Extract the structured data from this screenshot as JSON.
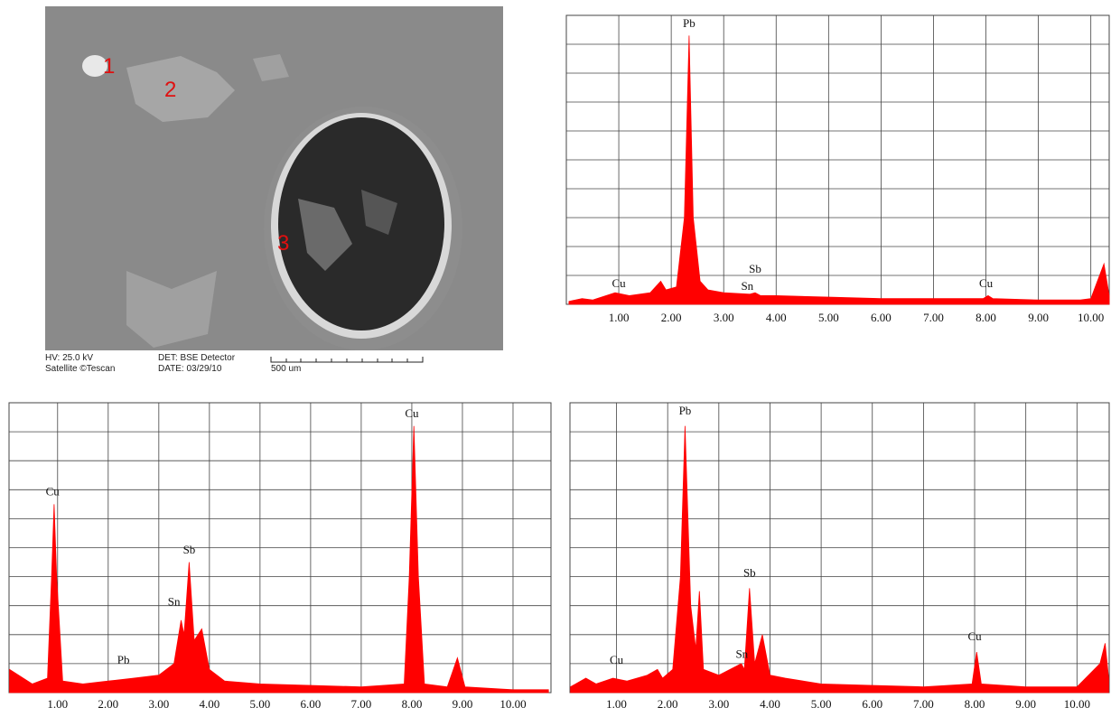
{
  "sem_image": {
    "labels": [
      "1",
      "2",
      "3"
    ],
    "hv": "HV: 25.0 kV",
    "det": "DET: BSE Detector",
    "make": "Satellite ©Tescan",
    "date": "DATE: 03/29/10",
    "scale_bar": "500 um"
  },
  "chart_data": [
    {
      "type": "area",
      "color": "#ff0000",
      "grid": true,
      "xlim": [
        0,
        10.35
      ],
      "ylim": [
        0,
        100
      ],
      "xticks": [
        {
          "value": 1,
          "label": "1.00"
        },
        {
          "value": 2,
          "label": "2.00"
        },
        {
          "value": 3,
          "label": "3.00"
        },
        {
          "value": 4,
          "label": "4.00"
        },
        {
          "value": 5,
          "label": "5.00"
        },
        {
          "value": 6,
          "label": "6.00"
        },
        {
          "value": 7,
          "label": "7.00"
        },
        {
          "value": 8,
          "label": "8.00"
        },
        {
          "value": 9,
          "label": "9.00"
        },
        {
          "value": 10,
          "label": "10.00"
        }
      ],
      "yticks": [
        0,
        10,
        20,
        30,
        40,
        50,
        60,
        70,
        80,
        90,
        100
      ],
      "x": [
        0.05,
        0.3,
        0.5,
        0.93,
        1.2,
        1.6,
        1.8,
        1.9,
        2.1,
        2.25,
        2.34,
        2.42,
        2.55,
        2.7,
        3.0,
        3.5,
        3.6,
        3.7,
        4.0,
        5.0,
        6.0,
        7.0,
        7.95,
        8.04,
        8.13,
        9.0,
        9.8,
        10.0,
        10.25,
        10.35
      ],
      "values": [
        1,
        2,
        1.5,
        4,
        3,
        4,
        8,
        5,
        6,
        30,
        93,
        30,
        8,
        5,
        4,
        3.5,
        4,
        3,
        3,
        2.5,
        2,
        2,
        2,
        3,
        2,
        1.5,
        1.5,
        2,
        14,
        3
      ],
      "annotations": [
        {
          "text": "Pb",
          "x": 2.34,
          "y": 96
        },
        {
          "text": "Cu",
          "x": 1.0,
          "y": 6
        },
        {
          "text": "Sb",
          "x": 3.6,
          "y": 11
        },
        {
          "text": "Sn",
          "x": 3.45,
          "y": 5
        },
        {
          "text": "Cu",
          "x": 8.0,
          "y": 6
        }
      ]
    },
    {
      "type": "area",
      "color": "#ff0000",
      "grid": true,
      "xlim": [
        0.04,
        10.75
      ],
      "ylim": [
        0,
        100
      ],
      "xticks": [
        {
          "value": 1,
          "label": "1.00"
        },
        {
          "value": 2,
          "label": "2.00"
        },
        {
          "value": 3,
          "label": "3.00"
        },
        {
          "value": 4,
          "label": "4.00"
        },
        {
          "value": 5,
          "label": "5.00"
        },
        {
          "value": 6,
          "label": "6.00"
        },
        {
          "value": 7,
          "label": "7.00"
        },
        {
          "value": 8,
          "label": "8.00"
        },
        {
          "value": 9,
          "label": "9.00"
        },
        {
          "value": 10,
          "label": "10.00"
        }
      ],
      "yticks": [
        0,
        10,
        20,
        30,
        40,
        50,
        60,
        70,
        80,
        90,
        100
      ],
      "x": [
        0.05,
        0.5,
        0.8,
        0.88,
        0.93,
        0.98,
        1.1,
        1.5,
        2.0,
        2.5,
        3.0,
        3.3,
        3.44,
        3.5,
        3.6,
        3.7,
        3.85,
        4.0,
        4.3,
        5.0,
        6.0,
        7.0,
        7.85,
        7.95,
        8.04,
        8.13,
        8.25,
        8.7,
        8.9,
        9.05,
        9.5,
        10.0,
        10.7
      ],
      "values": [
        8,
        3,
        5,
        40,
        65,
        40,
        4,
        3,
        4,
        5,
        6,
        10,
        25,
        20,
        45,
        18,
        22,
        8,
        4,
        3,
        2.5,
        2,
        3,
        40,
        92,
        40,
        3,
        2,
        12,
        2,
        1.5,
        1,
        1
      ],
      "annotations": [
        {
          "text": "Cu",
          "x": 0.9,
          "y": 68
        },
        {
          "text": "Sb",
          "x": 3.6,
          "y": 48
        },
        {
          "text": "Sn",
          "x": 3.3,
          "y": 30
        },
        {
          "text": "Pb",
          "x": 2.3,
          "y": 10
        },
        {
          "text": "Cu",
          "x": 8.0,
          "y": 95
        }
      ]
    },
    {
      "type": "area",
      "color": "#ff0000",
      "grid": true,
      "xlim": [
        0.09,
        10.63
      ],
      "ylim": [
        0,
        100
      ],
      "xticks": [
        {
          "value": 1,
          "label": "1.00"
        },
        {
          "value": 2,
          "label": "2.00"
        },
        {
          "value": 3,
          "label": "3.00"
        },
        {
          "value": 4,
          "label": "4.00"
        },
        {
          "value": 5,
          "label": "5.00"
        },
        {
          "value": 6,
          "label": "6.00"
        },
        {
          "value": 7,
          "label": "7.00"
        },
        {
          "value": 8,
          "label": "8.00"
        },
        {
          "value": 9,
          "label": "9.00"
        },
        {
          "value": 10,
          "label": "10.00"
        }
      ],
      "yticks": [
        0,
        10,
        20,
        30,
        40,
        50,
        60,
        70,
        80,
        90,
        100
      ],
      "x": [
        0.1,
        0.4,
        0.6,
        0.93,
        1.2,
        1.6,
        1.8,
        1.9,
        2.1,
        2.25,
        2.34,
        2.45,
        2.55,
        2.62,
        2.7,
        3.0,
        3.44,
        3.5,
        3.6,
        3.7,
        3.85,
        4.0,
        4.3,
        5.0,
        6.0,
        7.0,
        7.95,
        8.04,
        8.13,
        9.0,
        10.0,
        10.45,
        10.55,
        10.62
      ],
      "values": [
        2,
        5,
        3,
        5,
        4,
        6,
        8,
        5,
        8,
        40,
        92,
        30,
        15,
        35,
        8,
        6,
        10,
        8,
        36,
        10,
        20,
        6,
        5,
        3,
        2.5,
        2,
        3,
        14,
        3,
        2,
        2,
        10,
        17,
        5
      ],
      "annotations": [
        {
          "text": "Pb",
          "x": 2.34,
          "y": 96
        },
        {
          "text": "Sb",
          "x": 3.6,
          "y": 40
        },
        {
          "text": "Sn",
          "x": 3.45,
          "y": 12
        },
        {
          "text": "Cu",
          "x": 1.0,
          "y": 10
        },
        {
          "text": "Cu",
          "x": 8.0,
          "y": 18
        }
      ]
    }
  ]
}
